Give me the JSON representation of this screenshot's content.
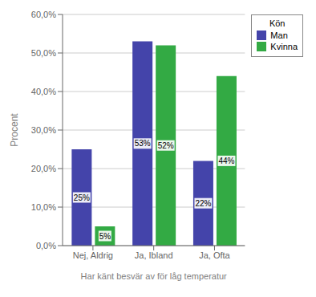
{
  "chart_data": {
    "type": "bar",
    "categories": [
      "Nej, Aldrig",
      "Ja, Ibland",
      "Ja, Ofta"
    ],
    "series": [
      {
        "name": "Man",
        "color": "#4444AA",
        "values": [
          25,
          53,
          22
        ],
        "value_labels": [
          "25%",
          "53%",
          "22%"
        ]
      },
      {
        "name": "Kvinna",
        "color": "#33AA44",
        "values": [
          5,
          52,
          44
        ],
        "value_labels": [
          "5%",
          "52%",
          "44%"
        ]
      }
    ],
    "xlabel": "Har känt besvär av för låg temperatur",
    "ylabel": "Procent",
    "ylim": [
      0,
      60
    ],
    "yticks": [
      {
        "value": 0,
        "label": "0,0%"
      },
      {
        "value": 10,
        "label": "10,0%"
      },
      {
        "value": 20,
        "label": "20,0%"
      },
      {
        "value": 30,
        "label": "30,0%"
      },
      {
        "value": 40,
        "label": "40,0%"
      },
      {
        "value": 50,
        "label": "50,0%"
      },
      {
        "value": 60,
        "label": "60,0%"
      }
    ],
    "grid": true,
    "legend": "upper right",
    "legend_title": "Kön",
    "data_labels": true
  }
}
